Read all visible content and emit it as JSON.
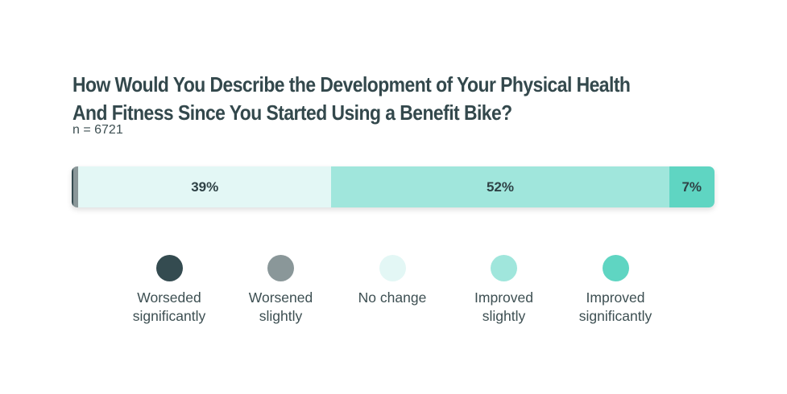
{
  "chart_data": {
    "type": "bar",
    "orientation": "horizontal-stacked",
    "title_lines": [
      "How Would You Describe the Development of Your Physical Health",
      "And Fitness Since You Started Using a Benefit Bike?"
    ],
    "subtitle": "n = 6721",
    "categories": [
      "Worseded significantly",
      "Worsened slightly",
      "No change",
      "Improved slightly",
      "Improved significantly"
    ],
    "series": [
      {
        "name": "Worseded significantly",
        "value": 0.2,
        "label": "",
        "color": "#344b50",
        "legend_lines": [
          "Worseded",
          "significantly"
        ]
      },
      {
        "name": "Worsened slightly",
        "value": 0.8,
        "label": "",
        "color": "#8a9799",
        "legend_lines": [
          "Worsened",
          "slightly"
        ]
      },
      {
        "name": "No change",
        "value": 39,
        "label": "39%",
        "color": "#e3f7f5",
        "legend_lines": [
          "No change"
        ]
      },
      {
        "name": "Improved slightly",
        "value": 52,
        "label": "52%",
        "color": "#a0e6dc",
        "legend_lines": [
          "Improved",
          "slightly"
        ]
      },
      {
        "name": "Improved significantly",
        "value": 7,
        "label": "7%",
        "color": "#5fd5c2",
        "legend_lines": [
          "Improved",
          "significantly"
        ]
      }
    ],
    "xlim": [
      0,
      99
    ],
    "legend_position": "bottom"
  }
}
